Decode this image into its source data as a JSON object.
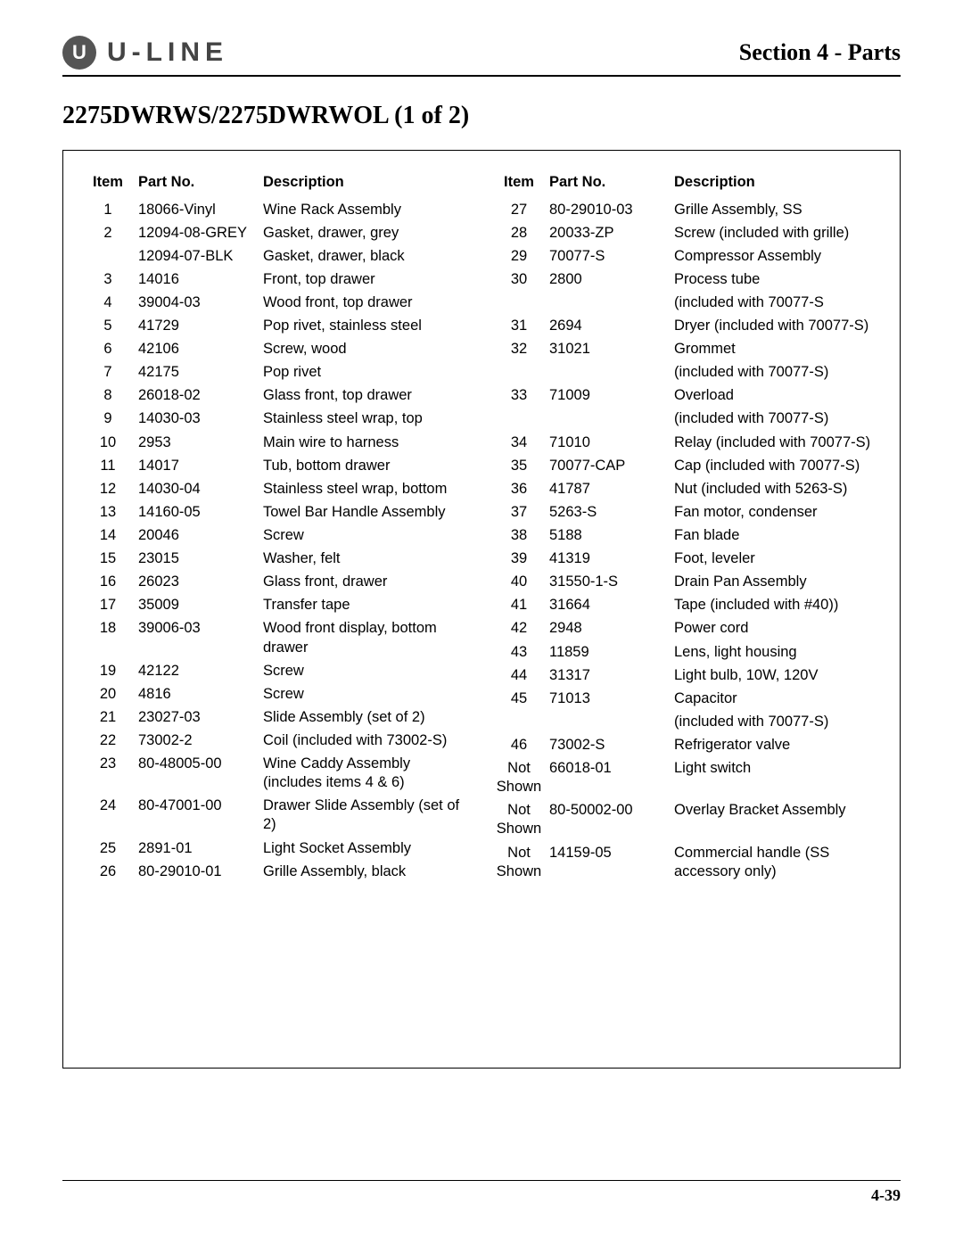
{
  "brand_letter": "U",
  "brand_name": "U-LINE",
  "section_label": "Section 4 - Parts",
  "page_title": "2275DWRWS/2275DWRWOL (1 of 2)",
  "page_number": "4-39",
  "headers": {
    "item": "Item",
    "part": "Part No.",
    "desc": "Description"
  },
  "left_rows": [
    {
      "item": "1",
      "part": "18066-Vinyl",
      "desc": "Wine Rack Assembly"
    },
    {
      "item": "2",
      "part": "12094-08-GREY",
      "desc": "Gasket, drawer, grey"
    },
    {
      "item": "",
      "part": "12094-07-BLK",
      "desc": "Gasket, drawer, black"
    },
    {
      "item": "3",
      "part": "14016",
      "desc": "Front, top drawer"
    },
    {
      "item": "4",
      "part": "39004-03",
      "desc": "Wood front, top drawer"
    },
    {
      "item": "5",
      "part": "41729",
      "desc": "Pop rivet, stainless steel"
    },
    {
      "item": "6",
      "part": "42106",
      "desc": "Screw, wood"
    },
    {
      "item": "7",
      "part": "42175",
      "desc": "Pop rivet"
    },
    {
      "item": "8",
      "part": "26018-02",
      "desc": "Glass front, top drawer"
    },
    {
      "item": "9",
      "part": "14030-03",
      "desc": "Stainless steel wrap, top"
    },
    {
      "item": "10",
      "part": "2953",
      "desc": "Main wire to harness"
    },
    {
      "item": "11",
      "part": "14017",
      "desc": "Tub, bottom drawer"
    },
    {
      "item": "12",
      "part": "14030-04",
      "desc": "Stainless steel wrap, bottom"
    },
    {
      "item": "13",
      "part": "14160-05",
      "desc": "Towel Bar Handle Assembly"
    },
    {
      "item": "14",
      "part": "20046",
      "desc": "Screw"
    },
    {
      "item": "15",
      "part": "23015",
      "desc": "Washer, felt"
    },
    {
      "item": "16",
      "part": "26023",
      "desc": "Glass front, drawer"
    },
    {
      "item": "17",
      "part": "35009",
      "desc": "Transfer tape"
    },
    {
      "item": "18",
      "part": "39006-03",
      "desc": "Wood front display, bottom drawer"
    },
    {
      "item": "19",
      "part": "42122",
      "desc": "Screw"
    },
    {
      "item": "20",
      "part": "4816",
      "desc": "Screw"
    },
    {
      "item": "21",
      "part": "23027-03",
      "desc": "Slide Assembly (set of 2)"
    },
    {
      "item": "22",
      "part": "73002-2",
      "desc": "Coil (included with 73002-S)"
    },
    {
      "item": "23",
      "part": "80-48005-00",
      "desc": "Wine Caddy Assembly (includes items 4 & 6)"
    },
    {
      "item": "24",
      "part": "80-47001-00",
      "desc": "Drawer Slide Assembly (set of 2)"
    },
    {
      "item": "25",
      "part": "2891-01",
      "desc": "Light Socket Assembly"
    },
    {
      "item": "26",
      "part": "80-29010-01",
      "desc": "Grille Assembly, black"
    }
  ],
  "right_rows": [
    {
      "item": "27",
      "part": "80-29010-03",
      "desc": "Grille Assembly, SS"
    },
    {
      "item": "28",
      "part": "20033-ZP",
      "desc": "Screw (included with grille)"
    },
    {
      "item": "29",
      "part": "70077-S",
      "desc": "Compressor Assembly"
    },
    {
      "item": "30",
      "part": "2800",
      "desc": "Process tube"
    },
    {
      "item": "",
      "part": "",
      "desc": "(included with 70077-S"
    },
    {
      "item": "31",
      "part": "2694",
      "desc": "Dryer (included with 70077-S)"
    },
    {
      "item": "32",
      "part": "31021",
      "desc": "Grommet"
    },
    {
      "item": "",
      "part": "",
      "desc": "(included with 70077-S)"
    },
    {
      "item": "33",
      "part": "71009",
      "desc": "Overload"
    },
    {
      "item": "",
      "part": "",
      "desc": "(included with 70077-S)"
    },
    {
      "item": "34",
      "part": "71010",
      "desc": "Relay (included with 70077-S)"
    },
    {
      "item": "35",
      "part": "70077-CAP",
      "desc": "Cap (included with 70077-S)"
    },
    {
      "item": "36",
      "part": "41787",
      "desc": "Nut (included with 5263-S)"
    },
    {
      "item": "37",
      "part": "5263-S",
      "desc": "Fan motor, condenser"
    },
    {
      "item": "38",
      "part": "5188",
      "desc": "Fan blade"
    },
    {
      "item": "39",
      "part": "41319",
      "desc": "Foot, leveler"
    },
    {
      "item": "40",
      "part": "31550-1-S",
      "desc": "Drain Pan Assembly"
    },
    {
      "item": "41",
      "part": "31664",
      "desc": "Tape (included with #40))"
    },
    {
      "item": "42",
      "part": "2948",
      "desc": "Power cord"
    },
    {
      "item": "43",
      "part": "11859",
      "desc": "Lens, light housing"
    },
    {
      "item": "44",
      "part": "31317",
      "desc": "Light bulb, 10W, 120V"
    },
    {
      "item": "45",
      "part": "71013",
      "desc": "Capacitor"
    },
    {
      "item": "",
      "part": "",
      "desc": "(included with 70077-S)"
    },
    {
      "item": "46",
      "part": "73002-S",
      "desc": "Refrigerator valve"
    },
    {
      "item": "Not Shown",
      "part": "66018-01",
      "desc": "Light switch"
    },
    {
      "item": "Not Shown",
      "part": "80-50002-00",
      "desc": "Overlay Bracket Assembly"
    },
    {
      "item": "Not Shown",
      "part": "14159-05",
      "desc": "Commercial handle (SS accessory only)"
    }
  ]
}
